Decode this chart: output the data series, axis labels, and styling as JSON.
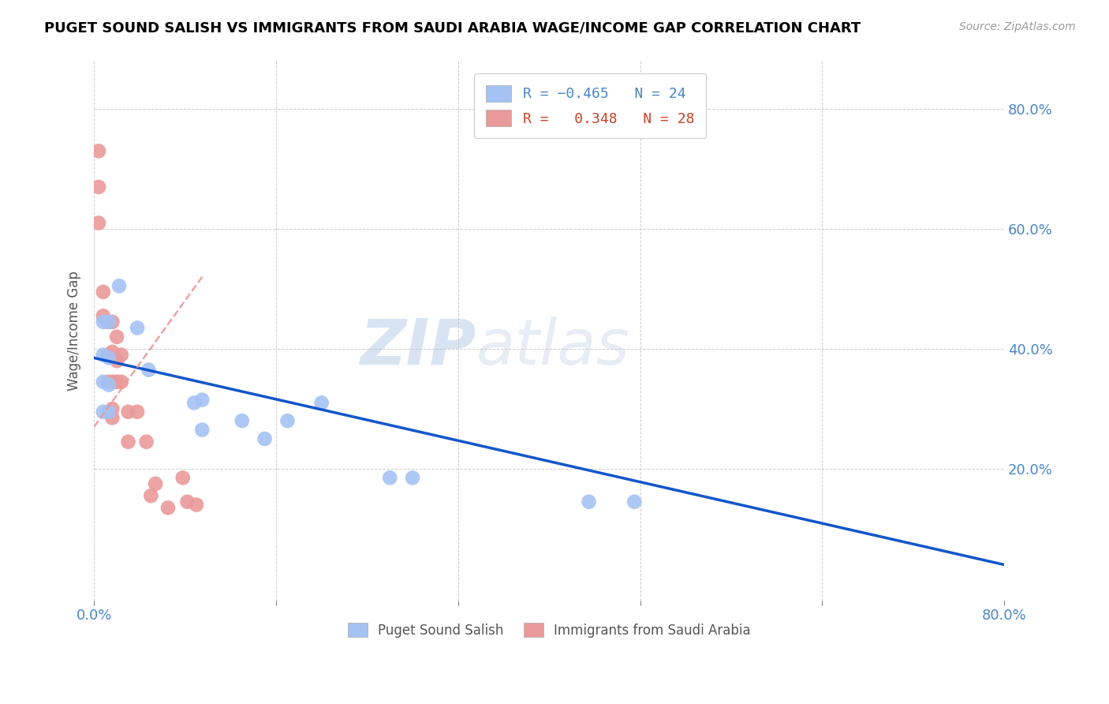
{
  "title": "PUGET SOUND SALISH VS IMMIGRANTS FROM SAUDI ARABIA WAGE/INCOME GAP CORRELATION CHART",
  "source": "Source: ZipAtlas.com",
  "ylabel": "Wage/Income Gap",
  "xlim": [
    0.0,
    0.8
  ],
  "ylim": [
    -0.02,
    0.88
  ],
  "yticks_right": [
    0.2,
    0.4,
    0.6,
    0.8
  ],
  "ytick_labels_right": [
    "20.0%",
    "40.0%",
    "60.0%",
    "80.0%"
  ],
  "blue_color": "#a4c2f4",
  "pink_color": "#ea9999",
  "blue_line_color": "#1155cc",
  "pink_line_color": "#cc4125",
  "blue_scatter_x": [
    0.008,
    0.013,
    0.008,
    0.013,
    0.008,
    0.013,
    0.008,
    0.013,
    0.022,
    0.038,
    0.048,
    0.095,
    0.095,
    0.13,
    0.17,
    0.15,
    0.2,
    0.088,
    0.26,
    0.28,
    0.435,
    0.475
  ],
  "blue_scatter_y": [
    0.445,
    0.445,
    0.39,
    0.385,
    0.345,
    0.34,
    0.295,
    0.295,
    0.505,
    0.435,
    0.365,
    0.315,
    0.265,
    0.28,
    0.28,
    0.25,
    0.31,
    0.31,
    0.185,
    0.185,
    0.145,
    0.145
  ],
  "pink_scatter_x": [
    0.004,
    0.004,
    0.004,
    0.008,
    0.008,
    0.012,
    0.012,
    0.012,
    0.016,
    0.016,
    0.016,
    0.016,
    0.016,
    0.02,
    0.02,
    0.02,
    0.024,
    0.024,
    0.03,
    0.03,
    0.038,
    0.046,
    0.05,
    0.054,
    0.065,
    0.078,
    0.082,
    0.09
  ],
  "pink_scatter_y": [
    0.73,
    0.67,
    0.61,
    0.495,
    0.455,
    0.445,
    0.39,
    0.345,
    0.445,
    0.395,
    0.345,
    0.3,
    0.285,
    0.42,
    0.38,
    0.345,
    0.39,
    0.345,
    0.295,
    0.245,
    0.295,
    0.245,
    0.155,
    0.175,
    0.135,
    0.185,
    0.145,
    0.14
  ],
  "blue_line_x": [
    0.0,
    0.8
  ],
  "blue_line_y": [
    0.385,
    0.04
  ],
  "pink_line_x": [
    0.0,
    0.095
  ],
  "pink_line_y": [
    0.27,
    0.52
  ],
  "watermark_zip": "ZIP",
  "watermark_atlas": "atlas",
  "background_color": "#ffffff",
  "grid_color": "#c0c0c0",
  "title_color": "#000000",
  "source_color": "#999999"
}
